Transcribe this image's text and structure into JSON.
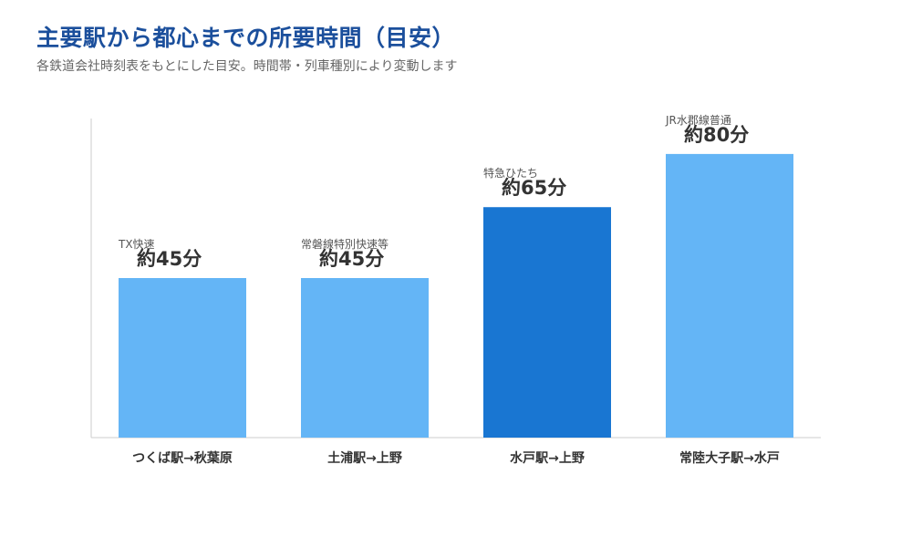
{
  "header": {
    "title": "主要駅から都心までの所要時間（目安）",
    "subtitle": "各鉄道会社時刻表をもとにした目安。時間帯・列車種別により変動します"
  },
  "colors": {
    "bar": "#64b5f6",
    "bar_highlight": "#1976d2",
    "axis": "#cccccc"
  },
  "chart_data": {
    "type": "bar",
    "title": "主要駅から都心までの所要時間（目安）",
    "subtitle": "各鉄道会社時刻表をもとにした目安。時間帯・列車種別により変動します",
    "categories": [
      "つくば駅→秋葉原",
      "土浦駅→上野",
      "水戸駅→上野",
      "常陸大子駅→水戸"
    ],
    "values": [
      45,
      45,
      65,
      80
    ],
    "value_labels": [
      "約45分",
      "約45分",
      "約65分",
      "約80分"
    ],
    "annotations": [
      "TX快速",
      "常磐線特別快速等",
      "特急ひたち",
      "JR水郡線普通"
    ],
    "highlight_index": 2,
    "ylim": [
      0,
      90
    ],
    "xlabel": "",
    "ylabel": "",
    "grid": false,
    "legend": "none"
  }
}
